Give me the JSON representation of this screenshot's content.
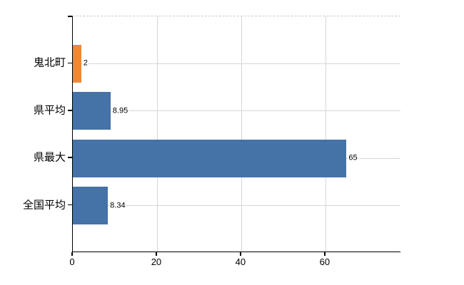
{
  "chart_data": {
    "type": "bar",
    "orientation": "horizontal",
    "title": "",
    "xlabel": "",
    "ylabel": "",
    "categories": [
      "鬼北町",
      "県平均",
      "県最大",
      "全国平均"
    ],
    "values": [
      2,
      8.95,
      65,
      8.34
    ],
    "value_labels": [
      "2",
      "8.95",
      "65",
      "8.34"
    ],
    "bar_colors": [
      "#ED8936",
      "#4572A7",
      "#4572A7",
      "#4572A7"
    ],
    "x_ticks": [
      0,
      20,
      40,
      60
    ],
    "x_tick_labels": [
      "0",
      "20",
      "40",
      "60"
    ],
    "xlim": [
      0,
      78
    ],
    "grid": true,
    "legend": false,
    "colors": {
      "highlight_bar": "#ED8936",
      "default_bar": "#4572A7",
      "gridline": "#D6D6D6",
      "plot_border_dashed": "#C9C9C9",
      "axis": "#000000",
      "text": "#000000",
      "background": "#FFFFFF"
    }
  }
}
